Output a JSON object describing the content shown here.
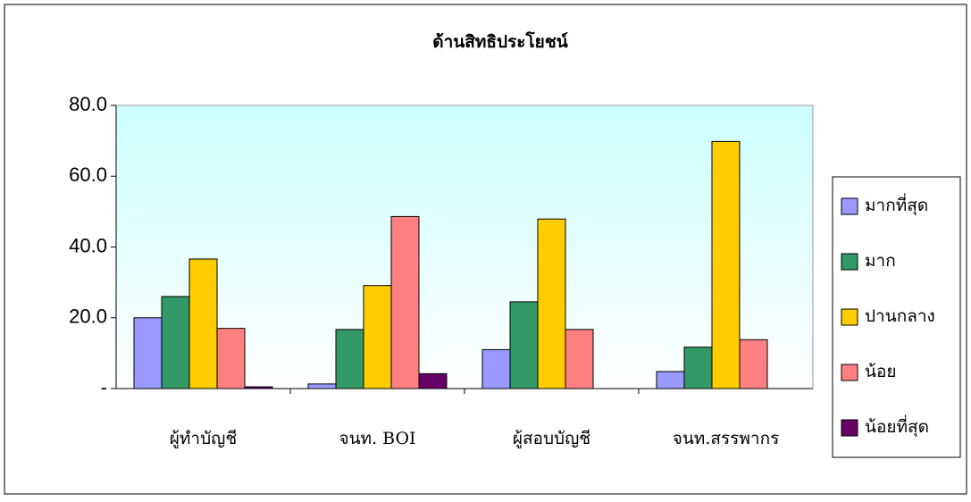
{
  "chart_data": {
    "type": "bar",
    "title": "ด้านสิทธิประโยชน์",
    "categories": [
      "ผู้ทำบัญชี",
      "จนท. BOI",
      "ผู้สอบบัญชี",
      "จนท.สรรพากร"
    ],
    "series": [
      {
        "name": "มากที่สุด",
        "color": "#9999ff",
        "values": [
          20.0,
          1.3,
          11.0,
          4.8
        ]
      },
      {
        "name": "มาก",
        "color": "#339966",
        "values": [
          26.0,
          16.7,
          24.5,
          11.7
        ]
      },
      {
        "name": "ปานกลาง",
        "color": "#ffcc00",
        "values": [
          36.6,
          29.1,
          47.9,
          69.8
        ]
      },
      {
        "name": "น้อย",
        "color": "#ff8080",
        "values": [
          17.0,
          48.6,
          16.7,
          13.8
        ]
      },
      {
        "name": "น้อยที่สุด",
        "color": "#660066",
        "values": [
          0.5,
          4.2,
          0,
          0
        ]
      }
    ],
    "ylim": [
      0,
      80
    ],
    "yticks": [
      {
        "value": 0,
        "label": "-"
      },
      {
        "value": 20,
        "label": "20.0"
      },
      {
        "value": 40,
        "label": "40.0"
      },
      {
        "value": 60,
        "label": "60.0"
      },
      {
        "value": 80,
        "label": "80.0"
      }
    ],
    "legend": "right"
  }
}
